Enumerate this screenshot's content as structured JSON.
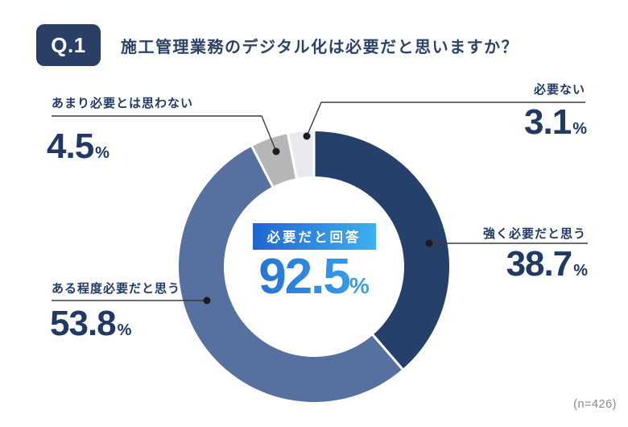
{
  "header": {
    "q_label": "Q.1",
    "title": "施工管理業務のデジタル化は必要だと思いますか？"
  },
  "chart_data": {
    "type": "pie",
    "subtype": "donut",
    "title": "施工管理業務のデジタル化は必要だと思いますか？",
    "categories": [
      "強く必要だと思う",
      "ある程度必要だと思う",
      "あまり必要とは思わない",
      "必要ない"
    ],
    "values": [
      38.7,
      53.8,
      4.5,
      3.1
    ],
    "unit": "%",
    "colors": [
      "#24406b",
      "#56719f",
      "#b5b6b8",
      "#e8eaee"
    ],
    "start_angle_deg": 0,
    "direction": "clockwise",
    "legend_position": "callouts",
    "center_annotation": {
      "badge": "必要だと回答",
      "value": 92.5,
      "unit": "%"
    },
    "sample_size_note": "(n=426)"
  },
  "callouts": [
    {
      "label": "強く必要だと思う",
      "display": "38.7",
      "unit": "%"
    },
    {
      "label": "ある程度必要だと思う",
      "display": "53.8",
      "unit": "%"
    },
    {
      "label": "あまり必要とは思わない",
      "display": "4.5",
      "unit": "%"
    },
    {
      "label": "必要ない",
      "display": "3.1",
      "unit": "%"
    }
  ],
  "center": {
    "badge_label": "必要だと回答",
    "display": "92.5",
    "unit": "%"
  },
  "footnote": {
    "text": "(n=426)"
  },
  "colors": {
    "navy_segment": "#24406b",
    "medium_blue_segment": "#56719f",
    "gray_segment": "#b5b6b8",
    "light_gray_segment": "#e8eaee",
    "text_navy": "#203a64",
    "badge_bg": "#2a3f66",
    "accent_gradient_start": "#1f66d0",
    "accent_gradient_end": "#3fb0f0",
    "footnote_gray": "#8a8a8a"
  }
}
